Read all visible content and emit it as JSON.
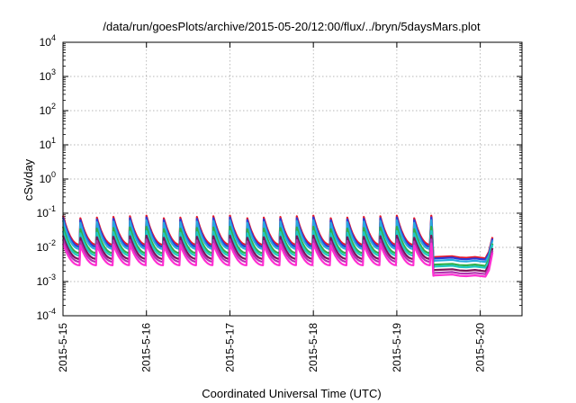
{
  "chart_data": {
    "type": "line",
    "title": "/data/run/goesPlots/archive/2015-05-20/12:00/flux/../bryn/5daysMars.plot",
    "xlabel": "Coordinated Universal Time (UTC)",
    "ylabel": "cSv/day",
    "yscale": "log",
    "ylim": [
      0.0001,
      10000
    ],
    "xlim": [
      "2015-05-15 00:00",
      "2015-05-20 12:00"
    ],
    "grid": true,
    "legend": "none",
    "x_ticks": [
      "2015-5-15",
      "2015-5-16",
      "2015-5-17",
      "2015-5-18",
      "2015-5-19",
      "2015-5-20"
    ],
    "y_ticks": [
      {
        "base": "10",
        "exp": "-4"
      },
      {
        "base": "10",
        "exp": "-3"
      },
      {
        "base": "10",
        "exp": "-2"
      },
      {
        "base": "10",
        "exp": "-1"
      },
      {
        "base": "10",
        "exp": "0"
      },
      {
        "base": "10",
        "exp": "1"
      },
      {
        "base": "10",
        "exp": "2"
      },
      {
        "base": "10",
        "exp": "3"
      },
      {
        "base": "10",
        "exp": "4"
      }
    ],
    "series": [
      {
        "color": "#e8182b",
        "peak": 0.085,
        "base": 0.012,
        "late_min": 0.0055,
        "late_end": 0.02
      },
      {
        "color": "#2b3cd8",
        "peak": 0.075,
        "base": 0.0105,
        "late_min": 0.005,
        "late_end": 0.018
      },
      {
        "color": "#29a8e0",
        "peak": 0.062,
        "base": 0.009,
        "late_min": 0.0043,
        "late_end": 0.016
      },
      {
        "color": "#2fb04a",
        "peak": 0.04,
        "base": 0.0068,
        "late_min": 0.0033,
        "late_end": 0.013
      },
      {
        "color": "#20c7c2",
        "peak": 0.03,
        "base": 0.0058,
        "late_min": 0.0029,
        "late_end": 0.012
      },
      {
        "color": "#7b1458",
        "peak": 0.022,
        "base": 0.0046,
        "late_min": 0.0023,
        "late_end": 0.0095
      },
      {
        "color": "#b233b0",
        "peak": 0.017,
        "base": 0.0038,
        "late_min": 0.0019,
        "late_end": 0.008
      },
      {
        "color": "#ff2fd2",
        "peak": 0.013,
        "base": 0.003,
        "late_min": 0.0016,
        "late_end": 0.007
      }
    ],
    "cycle_hours": 4.8,
    "spike_end": "2015-05-19 09:30"
  }
}
